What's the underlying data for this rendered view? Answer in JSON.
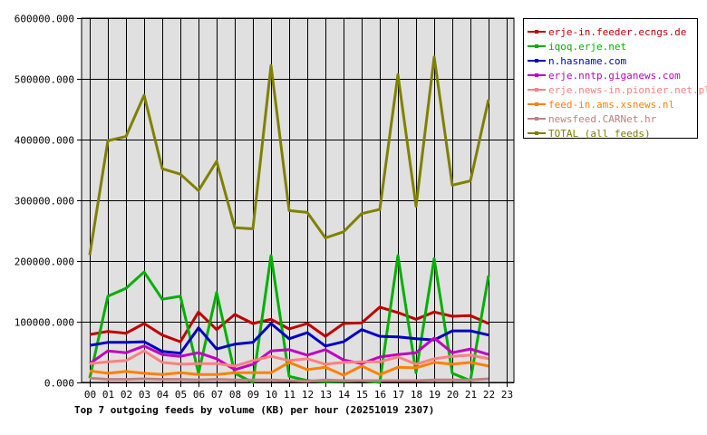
{
  "chart_data": {
    "type": "line",
    "title": "Top 7 outgoing feeds by volume (KB) per hour (20251019 2307)",
    "xlabel": "",
    "ylabel": "",
    "ylim": [
      0,
      600000
    ],
    "yticks": [
      "0.000",
      "100000.000",
      "200000.000",
      "300000.000",
      "400000.000",
      "500000.000",
      "600000.000"
    ],
    "categories": [
      "00",
      "01",
      "02",
      "03",
      "04",
      "05",
      "06",
      "07",
      "08",
      "09",
      "10",
      "11",
      "12",
      "13",
      "14",
      "15",
      "16",
      "17",
      "18",
      "19",
      "20",
      "21",
      "22",
      "23"
    ],
    "grid": true,
    "legend_position": "right",
    "series": [
      {
        "name": "erje-in.feeder.ecngs.de",
        "color": "#c00000",
        "values": [
          79000,
          84000,
          81000,
          97000,
          78000,
          67000,
          116000,
          87000,
          112000,
          97000,
          104000,
          88000,
          97000,
          76000,
          97000,
          98000,
          124000,
          115000,
          104000,
          116000,
          109000,
          110000,
          97000
        ]
      },
      {
        "name": "iqoq.erje.net",
        "color": "#00b000",
        "values": [
          7000,
          142000,
          155000,
          182000,
          137000,
          142000,
          15000,
          148000,
          15000,
          0,
          209000,
          10000,
          3000,
          1000,
          2000,
          3000,
          0,
          209000,
          16000,
          204000,
          15000,
          3000,
          176000
        ]
      },
      {
        "name": "n.hasname.com",
        "color": "#0000c0",
        "values": [
          61000,
          66000,
          66000,
          67000,
          51000,
          48000,
          90000,
          55000,
          63000,
          66000,
          97000,
          72000,
          82000,
          60000,
          67000,
          87000,
          76000,
          75000,
          72000,
          70000,
          85000,
          85000,
          78000
        ]
      },
      {
        "name": "erje.nntp.giganews.com",
        "color": "#c000c0",
        "values": [
          31000,
          52000,
          49000,
          60000,
          46000,
          43000,
          49000,
          39000,
          21000,
          30000,
          52000,
          54000,
          45000,
          54000,
          37000,
          31000,
          42000,
          46000,
          49000,
          73000,
          49000,
          55000,
          46000
        ]
      },
      {
        "name": "erje.news-in.pionier.net.pl",
        "color": "#ff8080",
        "values": [
          31000,
          34000,
          36000,
          52000,
          33000,
          30000,
          31000,
          31000,
          27000,
          36000,
          43000,
          36000,
          39000,
          30000,
          33000,
          34000,
          34000,
          42000,
          30000,
          39000,
          43000,
          45000,
          39000
        ]
      },
      {
        "name": "feed-in.ams.xsnews.nl",
        "color": "#ff8000",
        "values": [
          19000,
          15000,
          18000,
          15000,
          13000,
          16000,
          13000,
          13000,
          16000,
          16000,
          16000,
          33000,
          21000,
          25000,
          12000,
          27000,
          13000,
          25000,
          24000,
          33000,
          30000,
          33000,
          27000
        ]
      },
      {
        "name": "newsfeed.CARNet.hr",
        "color": "#c08080",
        "values": [
          7000,
          5000,
          5000,
          6000,
          5000,
          5000,
          4000,
          5000,
          4000,
          4000,
          4000,
          3000,
          2000,
          4000,
          3000,
          3000,
          3000,
          3000,
          3000,
          4000,
          4000,
          4000,
          6000
        ]
      },
      {
        "name": "TOTAL (all feeds)",
        "color": "#808000",
        "values": [
          210000,
          398000,
          405000,
          473000,
          352000,
          343000,
          316000,
          364000,
          255000,
          253000,
          522000,
          283000,
          280000,
          238000,
          248000,
          278000,
          285000,
          507000,
          290000,
          536000,
          325000,
          332000,
          466000
        ]
      }
    ]
  },
  "legend": {
    "items": [
      {
        "label": "erje-in.feeder.ecngs.de",
        "color": "#c00000"
      },
      {
        "label": "iqoq.erje.net",
        "color": "#00b000"
      },
      {
        "label": "n.hasname.com",
        "color": "#0000c0"
      },
      {
        "label": "erje.nntp.giganews.com",
        "color": "#c000c0"
      },
      {
        "label": "erje.news-in.pionier.net.pl",
        "color": "#ff8080"
      },
      {
        "label": "feed-in.ams.xsnews.nl",
        "color": "#ff8000"
      },
      {
        "label": "newsfeed.CARNet.hr",
        "color": "#c08080"
      },
      {
        "label": "TOTAL (all feeds)",
        "color": "#808000"
      }
    ]
  },
  "colors": {
    "plot_bg": "#e0e0e0",
    "grid": "#000000"
  }
}
